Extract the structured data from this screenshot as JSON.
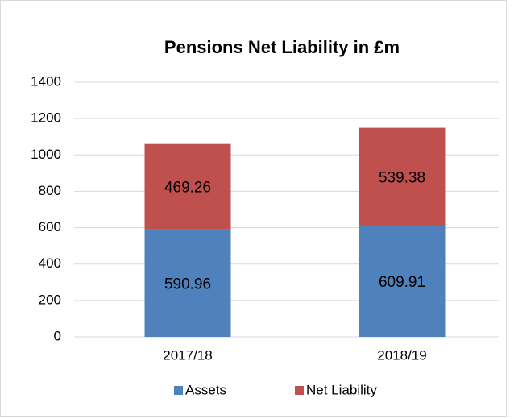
{
  "chart_data": {
    "type": "stacked_bar",
    "title": "Pensions Net Liability in £m",
    "categories": [
      "2017/18",
      "2018/19"
    ],
    "series": [
      {
        "name": "Assets",
        "color": "#4f81bd",
        "values": [
          590.96,
          609.91
        ]
      },
      {
        "name": "Net Liability",
        "color": "#c0504d",
        "values": [
          469.26,
          539.38
        ]
      }
    ],
    "ylim": [
      0,
      1400
    ],
    "yticks": [
      0,
      200,
      400,
      600,
      800,
      1000,
      1200,
      1400
    ],
    "grid": true,
    "legend": "bottom"
  }
}
